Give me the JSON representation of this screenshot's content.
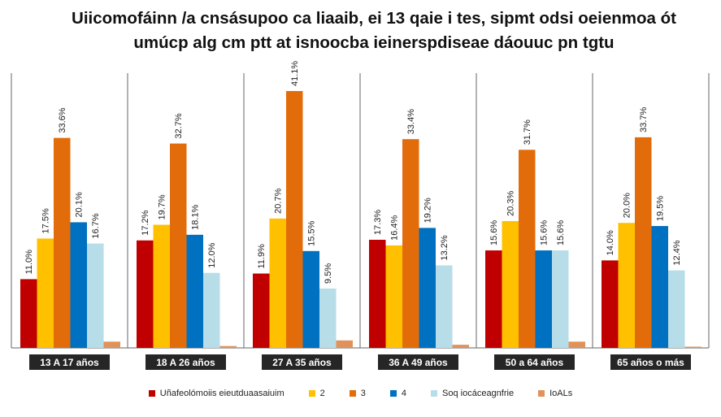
{
  "chart_data": {
    "type": "bar",
    "title": "Uiicomofáinn /a cnsásupoo ca liaaib, ei 13 qaie i tes, sipmt odsi oeienmoa ót umúcp alg cm ptt at isnoocba ieinerspdiseae dáouuc pn tgtu",
    "categories": [
      "13 A 17 años",
      "18 A 26 años",
      "27 A 35 años",
      "36 A 49 años",
      "50 a 64 años",
      "65 años o más"
    ],
    "ylim": [
      0,
      45
    ],
    "grid": false,
    "legend_position": "bottom",
    "series": [
      {
        "name": "Uñafeolómoiis eieutduaasaiuim",
        "color": "#c00000",
        "values": [
          11.0,
          17.2,
          11.9,
          17.3,
          15.6,
          14.0
        ],
        "labels": [
          "11.0%",
          "17.2%",
          "11.9%",
          "17.3%",
          "15.6%",
          "14.0%"
        ]
      },
      {
        "name": "2",
        "color": "#ffc000",
        "values": [
          17.5,
          19.7,
          20.7,
          16.4,
          20.3,
          20.0
        ],
        "labels": [
          "17.5%",
          "19.7%",
          "20.7%",
          "16.4%",
          "20.3%",
          "20.0%"
        ]
      },
      {
        "name": "3",
        "color": "#e36c0a",
        "values": [
          33.6,
          32.7,
          41.1,
          33.4,
          31.7,
          33.7
        ],
        "labels": [
          "33.6%",
          "32.7%",
          "41.1%",
          "33.4%",
          "31.7%",
          "33.7%"
        ]
      },
      {
        "name": "4",
        "color": "#0070c0",
        "values": [
          20.1,
          18.1,
          15.5,
          19.2,
          15.6,
          19.5
        ],
        "labels": [
          "20.1%",
          "18.1%",
          "15.5%",
          "19.2%",
          "15.6%",
          "19.5%"
        ]
      },
      {
        "name": "Soq iocáceagnfrie",
        "color": "#b7dde8",
        "values": [
          16.7,
          12.0,
          9.5,
          13.2,
          15.6,
          12.4
        ],
        "labels": [
          "16.7%",
          "12.0%",
          "9.5%",
          "13.2%",
          "15.6%",
          "12.4%"
        ]
      },
      {
        "name": "IoALs",
        "color": "#e0925a",
        "values": [
          1.0,
          0.3,
          1.2,
          0.5,
          1.0,
          0.2
        ],
        "labels": [
          "",
          "",
          "",
          "",
          "",
          ""
        ]
      }
    ]
  }
}
